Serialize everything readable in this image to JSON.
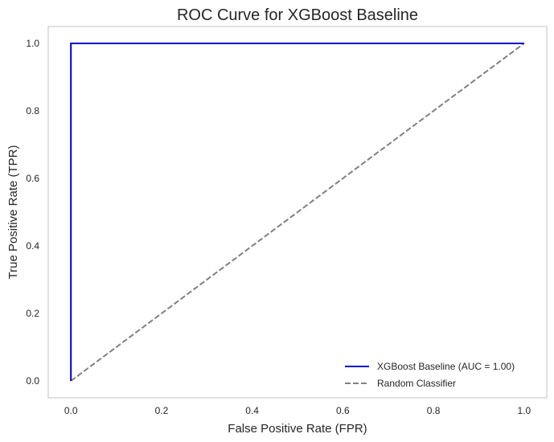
{
  "chart_data": {
    "type": "line",
    "title": "ROC Curve for XGBoost Baseline",
    "xlabel": "False Positive Rate (FPR)",
    "ylabel": "True Positive Rate (TPR)",
    "xlim": [
      -0.05,
      1.05
    ],
    "ylim": [
      -0.05,
      1.05
    ],
    "x_ticks": [
      "0.0",
      "0.2",
      "0.4",
      "0.6",
      "0.8",
      "1.0"
    ],
    "y_ticks": [
      "0.0",
      "0.2",
      "0.4",
      "0.6",
      "0.8",
      "1.0"
    ],
    "grid": false,
    "legend_position": "bottom-right",
    "series": [
      {
        "name": "XGBoost Baseline (AUC = 1.00)",
        "color": "#0000cc",
        "style": "solid",
        "x": [
          0.0,
          0.0,
          1.0
        ],
        "y": [
          0.0,
          1.0,
          1.0
        ]
      },
      {
        "name": "Random Classifier",
        "color": "#808080",
        "style": "dashed",
        "x": [
          0.0,
          1.0
        ],
        "y": [
          0.0,
          1.0
        ]
      }
    ]
  }
}
